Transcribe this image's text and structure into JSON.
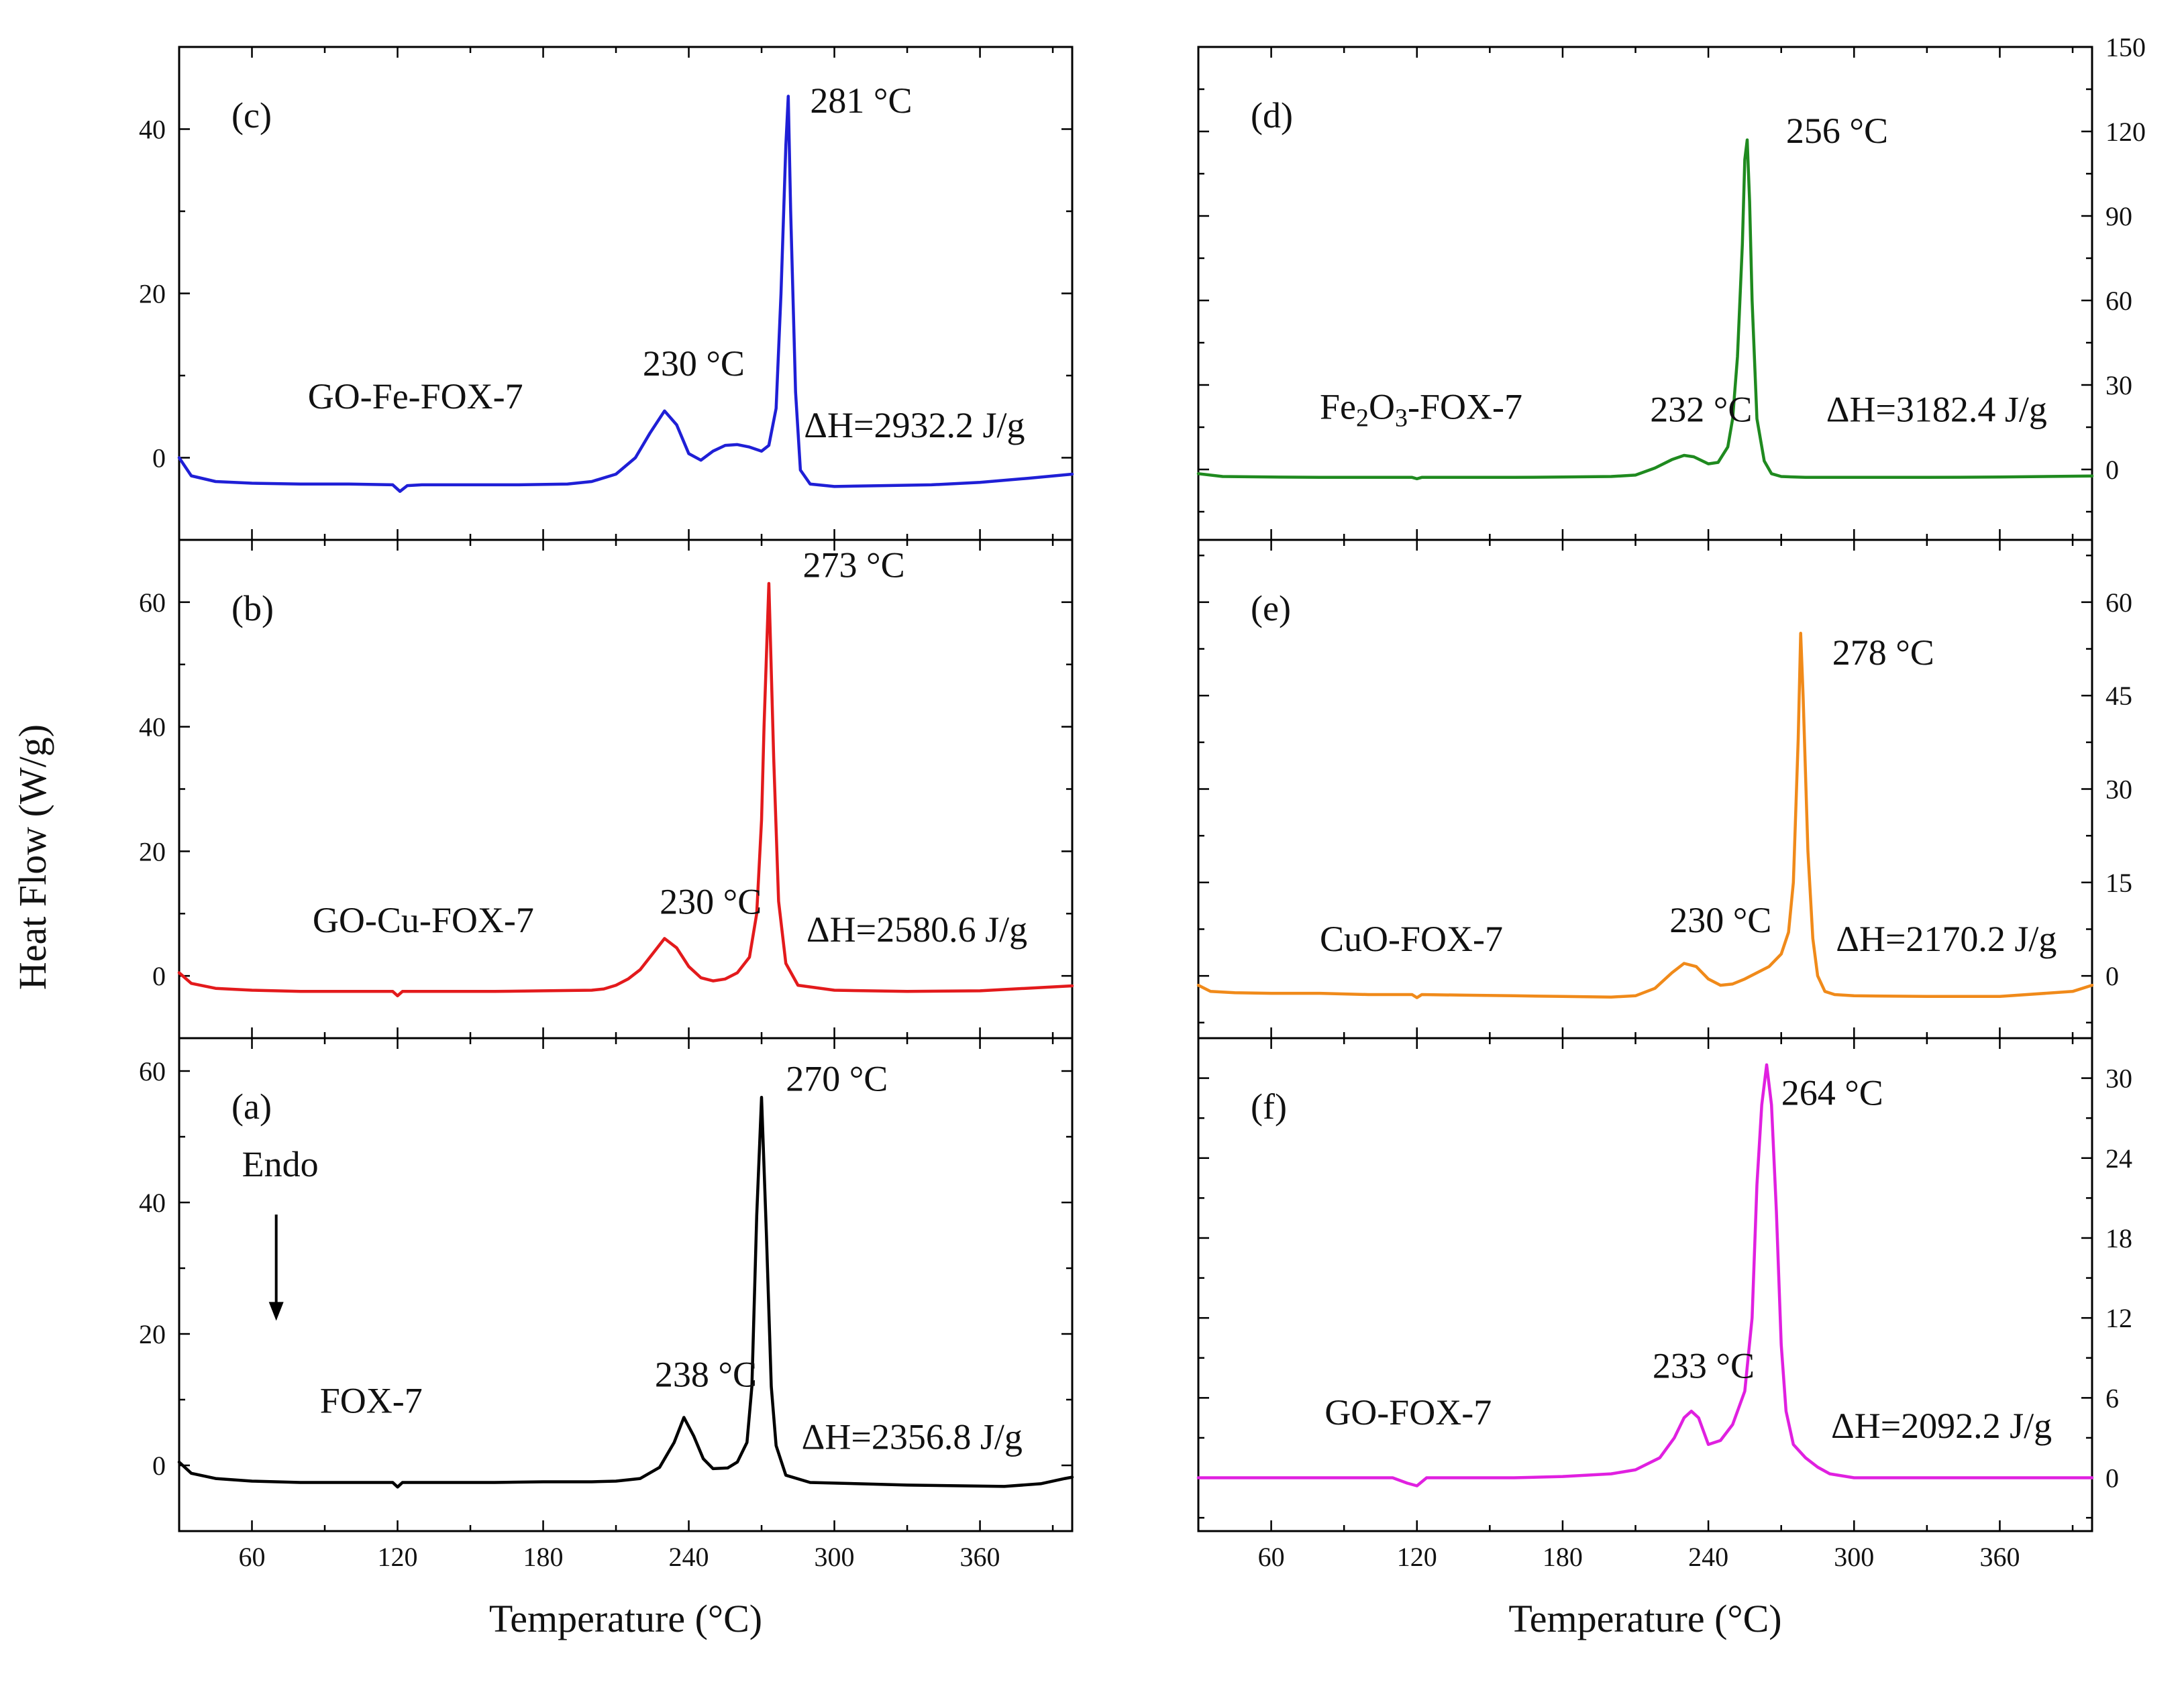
{
  "figure": {
    "ylabel": "Heat Flow (W/g)",
    "endo_label": "Endo"
  },
  "chart_data": [
    {
      "type": "line",
      "panel": "(a)",
      "series_name": "FOX-7",
      "color": "#000000",
      "xlabel": "Temperature (°C)",
      "xlim": [
        30,
        398
      ],
      "xticks": [
        60,
        120,
        180,
        240,
        300,
        360
      ],
      "ylim": [
        -10,
        65
      ],
      "yticks": [
        0,
        20,
        40,
        60
      ],
      "x": [
        30,
        35,
        45,
        60,
        80,
        100,
        118,
        120,
        122,
        126,
        140,
        160,
        180,
        200,
        210,
        220,
        228,
        234,
        238,
        242,
        246,
        250,
        256,
        260,
        264,
        266,
        268,
        270,
        272,
        274,
        276,
        280,
        290,
        310,
        330,
        350,
        370,
        385,
        395,
        398
      ],
      "y": [
        0.5,
        -1.2,
        -2.0,
        -2.4,
        -2.6,
        -2.6,
        -2.6,
        -3.3,
        -2.6,
        -2.6,
        -2.6,
        -2.6,
        -2.5,
        -2.5,
        -2.4,
        -2.0,
        -0.3,
        3.5,
        7.3,
        4.5,
        1.0,
        -0.5,
        -0.4,
        0.5,
        3.5,
        12,
        38,
        56,
        35,
        12,
        3,
        -1.5,
        -2.6,
        -2.8,
        -3.0,
        -3.1,
        -3.2,
        -2.8,
        -2.0,
        -1.8
      ],
      "annotations": [
        {
          "text": "270 °C",
          "at": [
            280,
            57
          ]
        },
        {
          "text": "238 °C",
          "at": [
            226,
            12
          ]
        },
        {
          "text": "ΔH=2356.8 J/g",
          "at": [
            332,
            2.5
          ]
        },
        {
          "text": "FOX-7",
          "at": [
            88,
            8
          ]
        }
      ]
    },
    {
      "type": "line",
      "panel": "(b)",
      "series_name": "GO-Cu-FOX-7",
      "color": "#e31a1c",
      "xlabel": "",
      "xlim": [
        30,
        398
      ],
      "xticks": [
        60,
        120,
        180,
        240,
        300,
        360
      ],
      "ylim": [
        -10,
        70
      ],
      "yticks": [
        0,
        20,
        40,
        60
      ],
      "x": [
        30,
        35,
        45,
        60,
        80,
        100,
        118,
        120,
        122,
        126,
        140,
        160,
        180,
        200,
        205,
        210,
        215,
        220,
        225,
        230,
        235,
        240,
        245,
        250,
        255,
        260,
        265,
        268,
        270,
        271,
        273,
        275,
        277,
        280,
        285,
        300,
        330,
        360,
        398
      ],
      "y": [
        0.5,
        -1.2,
        -2.0,
        -2.3,
        -2.5,
        -2.5,
        -2.5,
        -3.2,
        -2.5,
        -2.5,
        -2.5,
        -2.5,
        -2.4,
        -2.3,
        -2.1,
        -1.5,
        -0.5,
        1.0,
        3.5,
        6.0,
        4.5,
        1.5,
        -0.3,
        -0.8,
        -0.5,
        0.5,
        3.0,
        10,
        25,
        40,
        63,
        35,
        12,
        2,
        -1.5,
        -2.3,
        -2.5,
        -2.4,
        -1.6
      ],
      "annotations": [
        {
          "text": "273 °C",
          "at": [
            287,
            64
          ]
        },
        {
          "text": "230 °C",
          "at": [
            228,
            10
          ]
        },
        {
          "text": "ΔH=2580.6 J/g",
          "at": [
            334,
            5.5
          ]
        },
        {
          "text": "GO-Cu-FOX-7",
          "at": [
            85,
            7
          ]
        }
      ]
    },
    {
      "type": "line",
      "panel": "(c)",
      "series_name": "GO-Fe-FOX-7",
      "color": "#1f1fd6",
      "xlabel": "Temperature (°C)",
      "xlim": [
        30,
        398
      ],
      "xticks": [
        60,
        120,
        180,
        240,
        300,
        360
      ],
      "ylim": [
        -10,
        50
      ],
      "yticks": [
        0,
        20,
        40
      ],
      "x": [
        30,
        35,
        45,
        60,
        80,
        100,
        118,
        121,
        124,
        130,
        150,
        170,
        190,
        200,
        210,
        218,
        224,
        230,
        235,
        240,
        245,
        250,
        255,
        260,
        265,
        270,
        273,
        276,
        278,
        280,
        281,
        282,
        284,
        286,
        290,
        300,
        320,
        340,
        360,
        380,
        398
      ],
      "y": [
        0,
        -2.2,
        -2.9,
        -3.1,
        -3.2,
        -3.2,
        -3.3,
        -4.1,
        -3.4,
        -3.3,
        -3.3,
        -3.3,
        -3.2,
        -2.9,
        -2.0,
        0.0,
        3.0,
        5.7,
        4.0,
        0.5,
        -0.3,
        0.8,
        1.5,
        1.6,
        1.3,
        0.8,
        1.5,
        6,
        20,
        38,
        44,
        30,
        8,
        -1.5,
        -3.2,
        -3.5,
        -3.4,
        -3.3,
        -3.0,
        -2.5,
        -2.0
      ],
      "annotations": [
        {
          "text": "281 °C",
          "at": [
            290,
            42
          ]
        },
        {
          "text": "230 °C",
          "at": [
            221,
            10
          ]
        },
        {
          "text": "ΔH=2932.2 J/g",
          "at": [
            333,
            2.5
          ]
        },
        {
          "text": "GO-Fe-FOX-7",
          "at": [
            83,
            6
          ]
        }
      ]
    },
    {
      "type": "line",
      "panel": "(d)",
      "series_name": "Fe2O3-FOX-7",
      "color": "#1f8a1f",
      "xlabel": "",
      "xlim": [
        30,
        398
      ],
      "xticks": [
        60,
        120,
        180,
        240,
        300,
        360
      ],
      "ylim": [
        -25,
        150
      ],
      "yticks": [
        0,
        30,
        60,
        90,
        120,
        150
      ],
      "x": [
        30,
        40,
        60,
        80,
        100,
        118,
        120,
        122,
        140,
        160,
        180,
        200,
        210,
        218,
        225,
        230,
        234,
        240,
        244,
        248,
        250,
        252,
        254,
        255,
        256,
        257,
        258,
        260,
        263,
        266,
        270,
        280,
        300,
        330,
        360,
        398
      ],
      "y": [
        -1.5,
        -2.5,
        -2.7,
        -2.8,
        -2.8,
        -2.8,
        -3.3,
        -2.8,
        -2.8,
        -2.8,
        -2.7,
        -2.5,
        -2.0,
        0.5,
        3.5,
        5.0,
        4.5,
        2.0,
        2.5,
        8,
        18,
        40,
        80,
        110,
        117,
        95,
        60,
        18,
        3,
        -1.5,
        -2.5,
        -2.8,
        -2.8,
        -2.8,
        -2.7,
        -2.3
      ],
      "annotations": [
        {
          "text": "256 °C",
          "at": [
            272,
            116
          ]
        },
        {
          "text": "232 °C",
          "at": [
            216,
            17
          ]
        },
        {
          "text": "ΔH=3182.4 J/g",
          "at": [
            334,
            17
          ]
        },
        {
          "text": "Fe2O3-FOX-7",
          "at": [
            80,
            18
          ]
        }
      ]
    },
    {
      "type": "line",
      "panel": "(e)",
      "series_name": "CuO-FOX-7",
      "color": "#f08a1a",
      "xlabel": "",
      "xlim": [
        30,
        398
      ],
      "xticks": [
        60,
        120,
        180,
        240,
        300,
        360
      ],
      "ylim": [
        -10,
        70
      ],
      "yticks": [
        0,
        15,
        30,
        45,
        60
      ],
      "x": [
        30,
        35,
        45,
        60,
        80,
        100,
        118,
        120,
        122,
        140,
        160,
        180,
        200,
        210,
        218,
        225,
        230,
        235,
        240,
        245,
        250,
        255,
        260,
        265,
        270,
        273,
        275,
        277,
        278,
        279,
        281,
        283,
        285,
        288,
        292,
        300,
        330,
        360,
        390,
        398
      ],
      "y": [
        -1.5,
        -2.5,
        -2.7,
        -2.8,
        -2.8,
        -3.0,
        -3.0,
        -3.5,
        -3.0,
        -3.1,
        -3.2,
        -3.3,
        -3.4,
        -3.2,
        -2.0,
        0.5,
        2.0,
        1.5,
        -0.5,
        -1.5,
        -1.3,
        -0.5,
        0.5,
        1.5,
        3.5,
        7,
        15,
        38,
        55,
        45,
        20,
        6,
        0,
        -2.5,
        -3.0,
        -3.2,
        -3.3,
        -3.3,
        -2.5,
        -1.5
      ],
      "annotations": [
        {
          "text": "278 °C",
          "at": [
            291,
            50
          ]
        },
        {
          "text": "230 °C",
          "at": [
            224,
            7
          ]
        },
        {
          "text": "ΔH=2170.2 J/g",
          "at": [
            338,
            4
          ]
        },
        {
          "text": "CuO-FOX-7",
          "at": [
            80,
            4
          ]
        }
      ]
    },
    {
      "type": "line",
      "panel": "(f)",
      "series_name": "GO-FOX-7",
      "color": "#e020e0",
      "xlabel": "Temperature (°C)",
      "xlim": [
        30,
        398
      ],
      "xticks": [
        60,
        120,
        180,
        240,
        300,
        360
      ],
      "ylim": [
        -4,
        33
      ],
      "yticks": [
        0,
        6,
        12,
        18,
        24,
        30
      ],
      "x": [
        30,
        60,
        90,
        110,
        116,
        120,
        124,
        140,
        160,
        180,
        200,
        210,
        220,
        226,
        230,
        233,
        236,
        240,
        245,
        250,
        255,
        258,
        260,
        262,
        264,
        266,
        268,
        270,
        272,
        275,
        280,
        285,
        290,
        300,
        330,
        360,
        398
      ],
      "y": [
        0,
        0,
        0,
        0,
        -0.4,
        -0.6,
        0,
        0,
        0,
        0.1,
        0.3,
        0.6,
        1.5,
        3.0,
        4.5,
        5.0,
        4.5,
        2.5,
        2.8,
        4,
        6.5,
        12,
        22,
        28,
        31,
        28,
        20,
        10,
        5,
        2.5,
        1.5,
        0.8,
        0.3,
        0,
        0,
        0,
        0
      ],
      "annotations": [
        {
          "text": "264 °C",
          "at": [
            270,
            28
          ]
        },
        {
          "text": "233 °C",
          "at": [
            217,
            7.5
          ]
        },
        {
          "text": "ΔH=2092.2 J/g",
          "at": [
            336,
            3
          ]
        },
        {
          "text": "GO-FOX-7",
          "at": [
            82,
            4
          ]
        }
      ]
    }
  ]
}
